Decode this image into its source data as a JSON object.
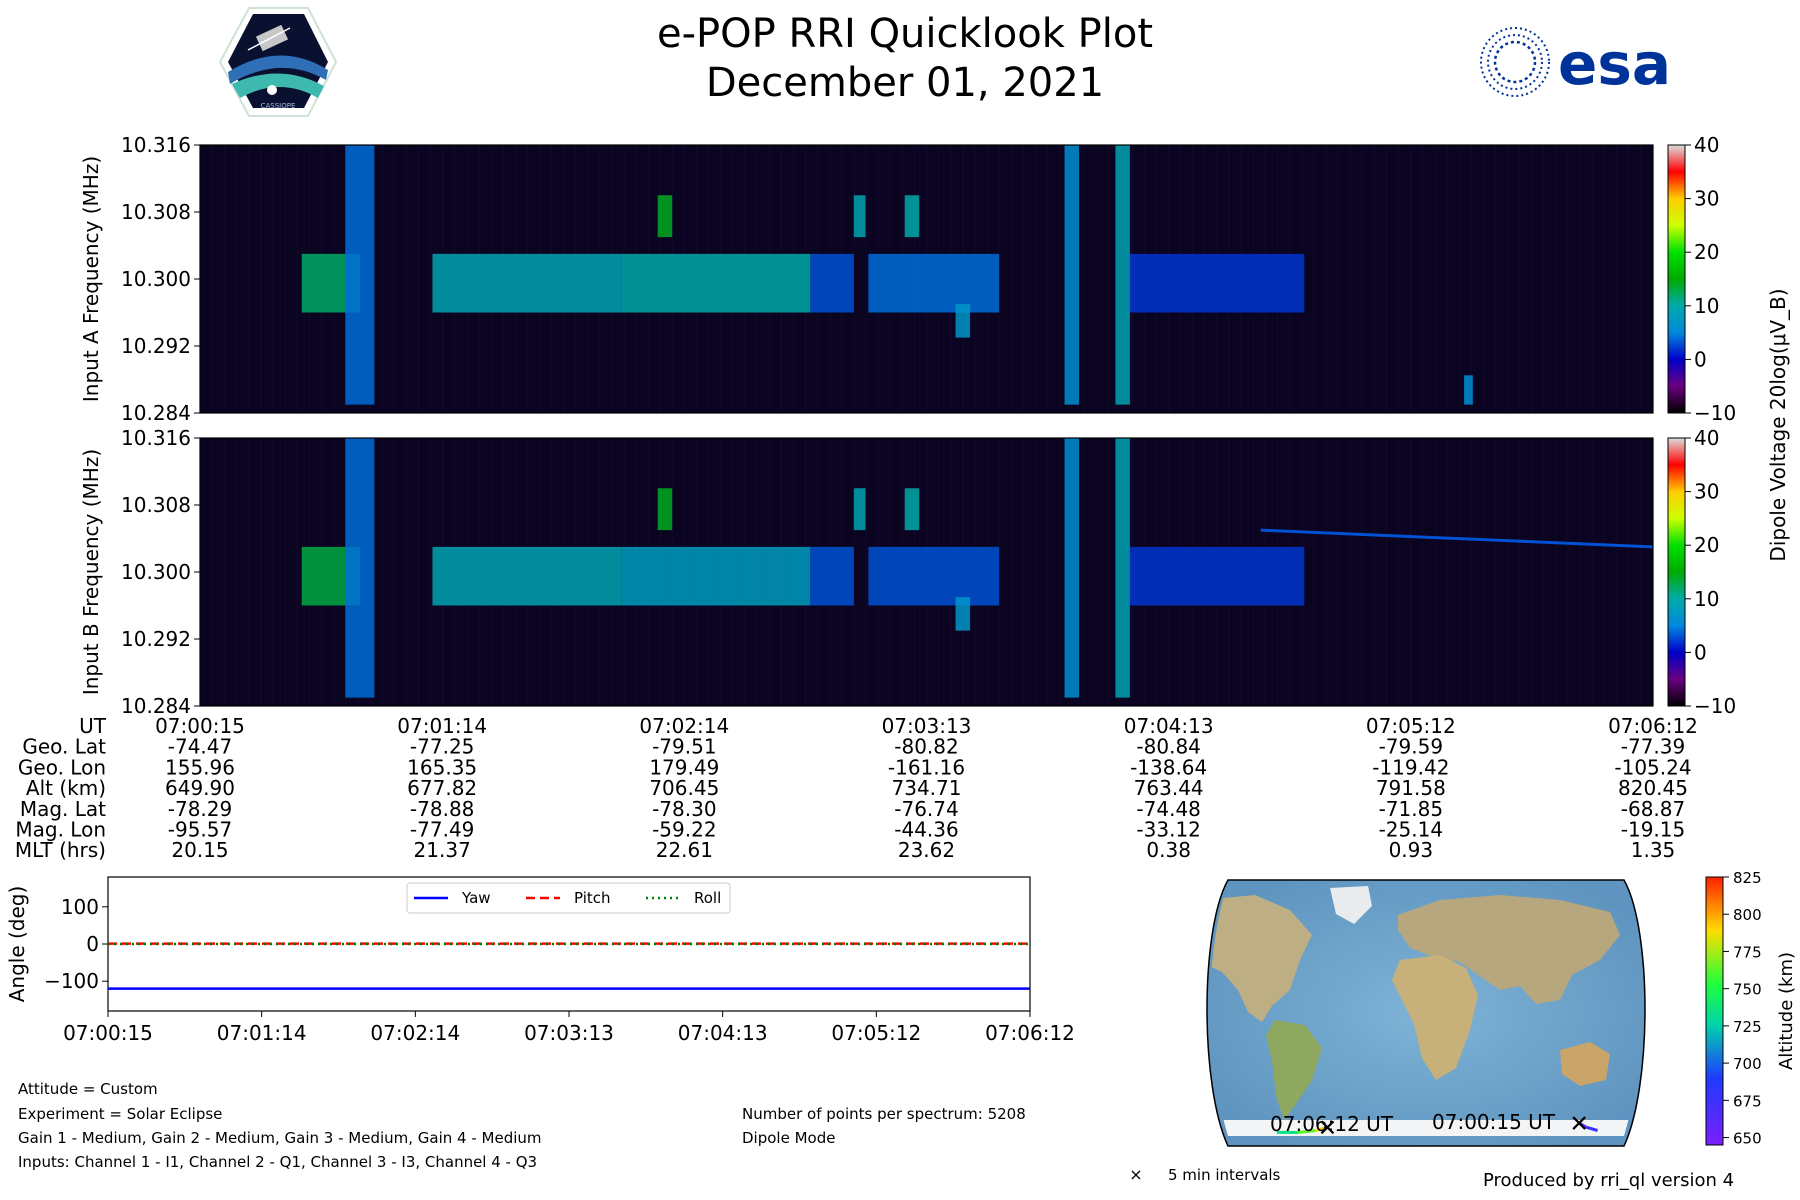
{
  "header": {
    "title": "e-POP RRI Quicklook Plot",
    "date": "December 01, 2021",
    "esa_logo_text": "esa",
    "cassiope_logo_text": "CASSIOPE"
  },
  "colors": {
    "background": "#ffffff",
    "spectrogram_bg": "#0b0420",
    "yaw": "#0000ff",
    "pitch": "#ff0000",
    "roll": "#008000",
    "esa_blue": "#003399"
  },
  "chart_data": [
    {
      "type": "heatmap",
      "id": "input-a",
      "ylabel": "Input A Frequency (MHz)",
      "y_ticks": [
        "10.316",
        "10.308",
        "10.300",
        "10.292",
        "10.284"
      ],
      "ylim": [
        10.284,
        10.316
      ],
      "colorbar": {
        "label": "Dipole Voltage 20log(μV_B)",
        "ticks": [
          "40",
          "30",
          "20",
          "10",
          "0",
          "−10"
        ],
        "range": [
          -10,
          40
        ],
        "colormap": "nipy_spectral"
      },
      "bands": [
        {
          "x": 0.07,
          "w": 0.04,
          "fmin": 10.296,
          "fmax": 10.303,
          "level": 12
        },
        {
          "x": 0.1,
          "w": 0.02,
          "fmin": 10.285,
          "fmax": 10.316,
          "level": 4
        },
        {
          "x": 0.16,
          "w": 0.13,
          "fmin": 10.296,
          "fmax": 10.303,
          "level": 9
        },
        {
          "x": 0.29,
          "w": 0.13,
          "fmin": 10.296,
          "fmax": 10.303,
          "level": 10
        },
        {
          "x": 0.315,
          "w": 0.01,
          "fmin": 10.305,
          "fmax": 10.31,
          "level": 14
        },
        {
          "x": 0.42,
          "w": 0.03,
          "fmin": 10.296,
          "fmax": 10.303,
          "level": 3
        },
        {
          "x": 0.45,
          "w": 0.008,
          "fmin": 10.305,
          "fmax": 10.31,
          "level": 9
        },
        {
          "x": 0.485,
          "w": 0.01,
          "fmin": 10.305,
          "fmax": 10.31,
          "level": 10
        },
        {
          "x": 0.46,
          "w": 0.09,
          "fmin": 10.296,
          "fmax": 10.303,
          "level": 4
        },
        {
          "x": 0.52,
          "w": 0.01,
          "fmin": 10.293,
          "fmax": 10.297,
          "level": 7
        },
        {
          "x": 0.595,
          "w": 0.01,
          "fmin": 10.285,
          "fmax": 10.316,
          "level": 6
        },
        {
          "x": 0.63,
          "w": 0.01,
          "fmin": 10.285,
          "fmax": 10.316,
          "level": 9
        },
        {
          "x": 0.64,
          "w": 0.12,
          "fmin": 10.296,
          "fmax": 10.303,
          "level": 2
        },
        {
          "x": 0.87,
          "w": 0.006,
          "fmin": 10.285,
          "fmax": 10.2885,
          "level": 6
        }
      ]
    },
    {
      "type": "heatmap",
      "id": "input-b",
      "ylabel": "Input B Frequency (MHz)",
      "y_ticks": [
        "10.316",
        "10.308",
        "10.300",
        "10.292",
        "10.284"
      ],
      "ylim": [
        10.284,
        10.316
      ],
      "colorbar": {
        "ticks": [
          "40",
          "30",
          "20",
          "10",
          "0",
          "−10"
        ],
        "range": [
          -10,
          40
        ],
        "colormap": "nipy_spectral"
      },
      "bands": [
        {
          "x": 0.07,
          "w": 0.04,
          "fmin": 10.296,
          "fmax": 10.303,
          "level": 13
        },
        {
          "x": 0.1,
          "w": 0.02,
          "fmin": 10.285,
          "fmax": 10.316,
          "level": 4
        },
        {
          "x": 0.16,
          "w": 0.13,
          "fmin": 10.296,
          "fmax": 10.303,
          "level": 9
        },
        {
          "x": 0.29,
          "w": 0.13,
          "fmin": 10.296,
          "fmax": 10.303,
          "level": 8
        },
        {
          "x": 0.315,
          "w": 0.01,
          "fmin": 10.305,
          "fmax": 10.31,
          "level": 14
        },
        {
          "x": 0.42,
          "w": 0.03,
          "fmin": 10.296,
          "fmax": 10.303,
          "level": 3
        },
        {
          "x": 0.45,
          "w": 0.008,
          "fmin": 10.305,
          "fmax": 10.31,
          "level": 9
        },
        {
          "x": 0.485,
          "w": 0.01,
          "fmin": 10.305,
          "fmax": 10.31,
          "level": 10
        },
        {
          "x": 0.46,
          "w": 0.09,
          "fmin": 10.296,
          "fmax": 10.303,
          "level": 3
        },
        {
          "x": 0.52,
          "w": 0.01,
          "fmin": 10.293,
          "fmax": 10.297,
          "level": 7
        },
        {
          "x": 0.595,
          "w": 0.01,
          "fmin": 10.285,
          "fmax": 10.316,
          "level": 6
        },
        {
          "x": 0.63,
          "w": 0.01,
          "fmin": 10.285,
          "fmax": 10.316,
          "level": 9
        },
        {
          "x": 0.64,
          "w": 0.12,
          "fmin": 10.296,
          "fmax": 10.303,
          "level": 2
        }
      ],
      "drift_line": {
        "x_start": 0.73,
        "f_start": 10.305,
        "x_end": 1.0,
        "f_end": 10.303,
        "level": 3
      }
    },
    {
      "type": "table",
      "id": "ephemeris",
      "rows": [
        {
          "label": "UT",
          "values": [
            "07:00:15",
            "07:01:14",
            "07:02:14",
            "07:03:13",
            "07:04:13",
            "07:05:12",
            "07:06:12"
          ]
        },
        {
          "label": "Geo. Lat",
          "values": [
            "-74.47",
            "-77.25",
            "-79.51",
            "-80.82",
            "-80.84",
            "-79.59",
            "-77.39"
          ]
        },
        {
          "label": "Geo. Lon",
          "values": [
            "155.96",
            "165.35",
            "179.49",
            "-161.16",
            "-138.64",
            "-119.42",
            "-105.24"
          ]
        },
        {
          "label": "Alt (km)",
          "values": [
            "649.90",
            "677.82",
            "706.45",
            "734.71",
            "763.44",
            "791.58",
            "820.45"
          ]
        },
        {
          "label": "Mag. Lat",
          "values": [
            "-78.29",
            "-78.88",
            "-78.30",
            "-76.74",
            "-74.48",
            "-71.85",
            "-68.87"
          ]
        },
        {
          "label": "Mag. Lon",
          "values": [
            "-95.57",
            "-77.49",
            "-59.22",
            "-44.36",
            "-33.12",
            "-25.14",
            "-19.15"
          ]
        },
        {
          "label": "MLT (hrs)",
          "values": [
            "20.15",
            "21.37",
            "22.61",
            "23.62",
            "0.38",
            "0.93",
            "1.35"
          ]
        }
      ]
    },
    {
      "type": "line",
      "id": "attitude",
      "ylabel": "Angle (deg)",
      "ylim": [
        -180,
        180
      ],
      "y_ticks": [
        {
          "value": 100,
          "label": "100"
        },
        {
          "value": 0,
          "label": "0"
        },
        {
          "value": -100,
          "label": "−100"
        }
      ],
      "x_ticks": [
        "07:00:15",
        "07:01:14",
        "07:02:14",
        "07:03:13",
        "07:04:13",
        "07:05:12",
        "07:06:12"
      ],
      "legend": "top-center",
      "series": [
        {
          "name": "Yaw",
          "style": "solid",
          "color": "#0000ff",
          "values": [
            -120,
            -120,
            -120,
            -120,
            -120,
            -120,
            -120
          ]
        },
        {
          "name": "Pitch",
          "style": "dashed",
          "color": "#ff0000",
          "values": [
            1,
            1,
            1,
            1,
            1,
            1,
            1
          ]
        },
        {
          "name": "Roll",
          "style": "dotted",
          "color": "#008000",
          "values": [
            0,
            0,
            0,
            0,
            0,
            0,
            0
          ]
        }
      ]
    },
    {
      "type": "scatter",
      "id": "ground-track-map",
      "projection": "Robinson",
      "track_start_label": "07:00:15 UT",
      "track_end_label": "07:06:12 UT",
      "track": [
        {
          "lon": 155.96,
          "lat": -74.47,
          "alt": 649.9
        },
        {
          "lon": 165.35,
          "lat": -77.25,
          "alt": 677.82
        },
        {
          "lon": 179.49,
          "lat": -79.51,
          "alt": 706.45
        },
        {
          "lon": -161.16,
          "lat": -80.82,
          "alt": 734.71
        },
        {
          "lon": -138.64,
          "lat": -80.84,
          "alt": 763.44
        },
        {
          "lon": -119.42,
          "lat": -79.59,
          "alt": 791.58
        },
        {
          "lon": -105.24,
          "lat": -77.39,
          "alt": 820.45
        }
      ],
      "colorbar": {
        "label": "Altitude (km)",
        "ticks": [
          "825",
          "800",
          "775",
          "750",
          "725",
          "700",
          "675",
          "650"
        ],
        "range": [
          645,
          825
        ]
      },
      "legend_marker": "×",
      "legend_text": "5 min intervals"
    }
  ],
  "info": {
    "attitude": "Attitude = Custom",
    "experiment": "Experiment = Solar Eclipse",
    "gains": "Gain 1 - Medium, Gain 2 - Medium, Gain 3 - Medium, Gain 4 - Medium",
    "inputs": "Inputs: Channel 1 - I1, Channel 2 - Q1, Channel 3 - I3, Channel 4 - Q3",
    "points": "Number of points per spectrum: 5208",
    "mode": "Dipole Mode",
    "produced_by": "Produced by rri_ql version 4"
  }
}
